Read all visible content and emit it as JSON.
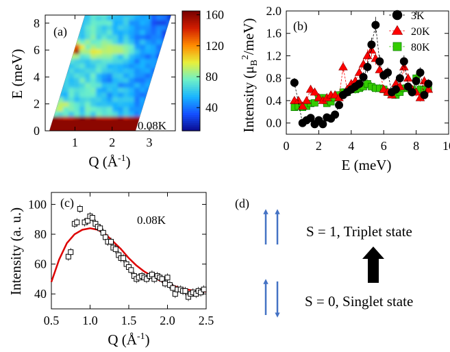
{
  "panels": {
    "a": {
      "label": "(a)",
      "temperature": "0.08K",
      "xlabel": "Q (Å-1)",
      "ylabel": "E (meV)",
      "xticks": [
        1,
        2,
        3
      ],
      "yticks": [
        0,
        2,
        4,
        6,
        8
      ],
      "xlim": [
        0.2,
        3.7
      ],
      "ylim": [
        0,
        8.6
      ],
      "colorbar": {
        "ticks": [
          40,
          80,
          120,
          160
        ],
        "range": [
          10,
          165
        ],
        "colors": [
          "#0a0a8c",
          "#1450ff",
          "#19b4ff",
          "#6ef0c8",
          "#e6f03c",
          "#ff8c00",
          "#d21e00",
          "#780000"
        ]
      }
    },
    "b": {
      "label": "(b)",
      "xlabel": "E (meV)",
      "ylabel": "Intensity (μB2/meV)",
      "xticks": [
        0,
        2,
        4,
        6,
        8,
        10
      ],
      "yticks": [
        "0.0",
        "0.4",
        "0.8",
        "1.2",
        "1.6",
        "2.0"
      ],
      "xlim": [
        0,
        10
      ],
      "ylim": [
        -0.2,
        2.0
      ]
    },
    "c": {
      "label": "(c)",
      "temperature": "0.08K",
      "xlabel": "Q (Å-1)",
      "ylabel": "Intensity (a. u.)",
      "xticks": [
        "0.5",
        "1.0",
        "1.5",
        "2.0",
        "2.5"
      ],
      "yticks": [
        40,
        60,
        80,
        100
      ],
      "xlim": [
        0.5,
        2.5
      ],
      "ylim": [
        30,
        108
      ]
    },
    "d": {
      "label": "(d)",
      "triplet_text": "S = 1, Triplet state",
      "singlet_text": "S = 0, Singlet state",
      "spin_color": "#4472c4"
    }
  },
  "chart_data": [
    {
      "type": "heatmap",
      "title": "",
      "xlabel": "Q (Å-1)",
      "ylabel": "E (meV)",
      "xlim": [
        0.2,
        3.7
      ],
      "ylim": [
        0,
        8.6
      ],
      "colorbar_ticks": [
        40,
        80,
        120,
        160
      ],
      "annotation": "0.08K",
      "features": [
        {
          "name": "elastic line",
          "E": 0.3,
          "Q_range": [
            0.3,
            2.6
          ],
          "intensity": 160
        },
        {
          "name": "spot",
          "Q": 1.0,
          "E": 6.0,
          "intensity": 150
        },
        {
          "name": "band",
          "E_range": [
            5.5,
            6.5
          ],
          "intensity": 80
        }
      ]
    },
    {
      "type": "scatter",
      "xlabel": "E (meV)",
      "ylabel": "Intensity (μB2/meV)",
      "xlim": [
        0,
        10
      ],
      "ylim": [
        -0.2,
        2.0
      ],
      "legend_position": "top-right",
      "series": [
        {
          "name": "3K",
          "color": "#000000",
          "marker": "circle",
          "x": [
            0.5,
            1.0,
            1.25,
            1.5,
            1.75,
            2.0,
            2.25,
            2.5,
            2.75,
            3.0,
            3.25,
            3.5,
            3.75,
            4.0,
            4.25,
            4.5,
            4.75,
            5.0,
            5.25,
            5.5,
            5.75,
            6.0,
            6.25,
            6.5,
            6.75,
            7.0,
            7.25,
            7.5,
            7.75,
            8.0,
            8.25,
            8.5,
            8.75
          ],
          "y": [
            0.72,
            0.0,
            0.05,
            0.09,
            -0.02,
            0.05,
            -0.02,
            0.1,
            0.08,
            0.15,
            0.32,
            0.5,
            0.55,
            0.6,
            0.65,
            0.7,
            0.82,
            1.0,
            1.4,
            1.75,
            1.1,
            0.85,
            0.9,
            0.55,
            0.6,
            0.8,
            1.1,
            0.65,
            0.55,
            0.75,
            0.9,
            0.5,
            0.7
          ]
        },
        {
          "name": "20K",
          "color": "#ff0000",
          "marker": "triangle",
          "x": [
            0.5,
            0.75,
            1.0,
            1.25,
            1.5,
            1.75,
            2.0,
            2.25,
            2.5,
            2.75,
            3.0,
            3.25,
            3.5,
            3.75,
            4.0,
            4.25,
            4.5,
            4.75,
            5.0,
            5.25,
            5.5,
            5.75,
            6.0,
            6.25,
            6.5,
            6.75,
            7.0,
            7.25,
            7.5,
            7.75,
            8.0,
            8.25,
            8.5,
            8.75
          ],
          "y": [
            0.4,
            0.4,
            0.3,
            0.4,
            0.6,
            0.55,
            0.45,
            0.4,
            0.45,
            0.5,
            0.5,
            0.45,
            1.0,
            0.6,
            0.7,
            0.75,
            0.9,
            1.05,
            1.2,
            1.3,
            1.15,
            0.95,
            0.6,
            0.55,
            0.5,
            0.7,
            0.65,
            1.0,
            0.8,
            0.6,
            0.55,
            0.45,
            0.75,
            0.6
          ]
        },
        {
          "name": "80K",
          "color": "#33cc00",
          "marker": "square",
          "x": [
            0.5,
            0.75,
            1.0,
            1.25,
            1.5,
            1.75,
            2.0,
            2.25,
            2.5,
            2.75,
            3.0,
            3.25,
            3.5,
            3.75,
            4.0,
            4.25,
            4.5,
            4.75,
            5.0,
            5.25,
            5.5,
            5.75,
            6.0,
            6.25,
            6.5,
            6.75,
            7.0,
            7.25,
            7.5,
            7.75,
            8.0,
            8.25,
            8.5,
            8.75
          ],
          "y": [
            0.28,
            0.3,
            0.28,
            0.3,
            0.35,
            0.36,
            0.45,
            0.45,
            0.35,
            0.38,
            0.45,
            0.5,
            0.55,
            0.55,
            0.6,
            0.6,
            0.62,
            0.65,
            0.7,
            0.65,
            0.62,
            0.62,
            0.6,
            0.55,
            0.55,
            0.5,
            0.55,
            0.62,
            0.62,
            0.6,
            0.8,
            0.6,
            0.6,
            0.62
          ]
        }
      ]
    },
    {
      "type": "scatter",
      "xlabel": "Q (Å-1)",
      "ylabel": "Intensity (a. u.)",
      "xlim": [
        0.5,
        2.5
      ],
      "ylim": [
        30,
        108
      ],
      "annotation": "0.08K",
      "series": [
        {
          "marker": "open-square",
          "color": "#000000",
          "x": [
            0.72,
            0.75,
            0.8,
            0.83,
            0.87,
            0.93,
            0.97,
            1.0,
            1.03,
            1.07,
            1.1,
            1.13,
            1.17,
            1.2,
            1.23,
            1.27,
            1.3,
            1.33,
            1.37,
            1.4,
            1.43,
            1.47,
            1.5,
            1.53,
            1.57,
            1.6,
            1.63,
            1.67,
            1.7,
            1.73,
            1.77,
            1.8,
            1.83,
            1.87,
            1.9,
            1.93,
            1.97,
            2.0,
            2.03,
            2.07,
            2.1,
            2.13,
            2.17,
            2.2,
            2.23,
            2.27,
            2.3,
            2.33,
            2.37,
            2.4,
            2.43,
            2.47
          ],
          "y": [
            65,
            68,
            87,
            88,
            97,
            88,
            89,
            92,
            91,
            87,
            85,
            84,
            81,
            78,
            75,
            75,
            71,
            70,
            66,
            64,
            64,
            60,
            58,
            56,
            52,
            50,
            51,
            52,
            51,
            50,
            52,
            53,
            50,
            52,
            51,
            50,
            47,
            51,
            46,
            44,
            40,
            43,
            43,
            42,
            42,
            38,
            40,
            41,
            40,
            42,
            41,
            43
          ]
        },
        {
          "marker": "line",
          "color": "#dd0000",
          "x": [
            0.5,
            0.6,
            0.7,
            0.8,
            0.9,
            1.0,
            1.1,
            1.2,
            1.3,
            1.4,
            1.5,
            1.6,
            1.7,
            1.8,
            1.9,
            2.0,
            2.1,
            2.2,
            2.3,
            2.4,
            2.5
          ],
          "y": [
            48,
            63,
            74,
            80,
            83,
            84,
            83,
            80,
            75,
            70,
            64,
            59,
            55,
            52,
            49,
            47,
            45,
            43.5,
            42.5,
            41.8,
            41.5
          ]
        }
      ]
    }
  ]
}
